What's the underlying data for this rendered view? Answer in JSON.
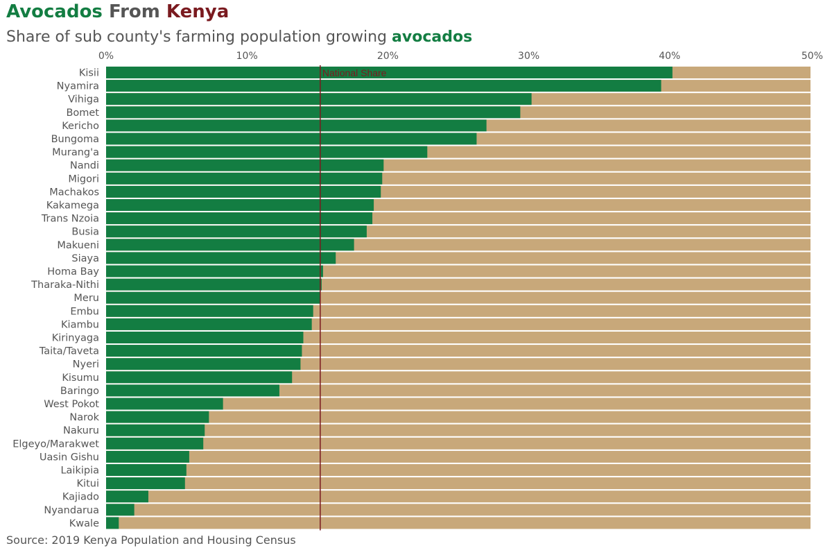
{
  "title": {
    "part1": "Avocados",
    "part2": "From",
    "part3": "Kenya"
  },
  "subtitle": {
    "prefix": "Share of sub county's farming population growing ",
    "highlight": "avocados"
  },
  "caption": "Source: 2019 Kenya Population and Housing Census",
  "colors": {
    "green": "#137d42",
    "tan": "#c8a87a",
    "maroon": "#7a1a1f",
    "gray": "#555555"
  },
  "chart_data": {
    "type": "bar",
    "orientation": "horizontal",
    "stacked": true,
    "title": "Avocados From Kenya",
    "subtitle": "Share of sub county's farming population growing avocados",
    "x_ticks": [
      "0%",
      "10%",
      "20%",
      "30%",
      "40%",
      "50%"
    ],
    "xlim": [
      0,
      50
    ],
    "axis_position": "top",
    "grid": false,
    "reference_line": {
      "value": 15.2,
      "label": "National Share"
    },
    "categories": [
      "Kisii",
      "Nyamira",
      "Vihiga",
      "Bomet",
      "Kericho",
      "Bungoma",
      "Murang'a",
      "Nandi",
      "Migori",
      "Machakos",
      "Kakamega",
      "Trans Nzoia",
      "Busia",
      "Makueni",
      "Siaya",
      "Homa Bay",
      "Tharaka-Nithi",
      "Meru",
      "Embu",
      "Kiambu",
      "Kirinyaga",
      "Taita/Taveta",
      "Nyeri",
      "Kisumu",
      "Baringo",
      "West Pokot",
      "Narok",
      "Nakuru",
      "Elgeyo/Marakwet",
      "Uasin Gishu",
      "Laikipia",
      "Kitui",
      "Kajiado",
      "Nyandarua",
      "Kwale"
    ],
    "values": [
      40.2,
      39.4,
      30.2,
      29.4,
      27.0,
      26.3,
      22.8,
      19.7,
      19.6,
      19.5,
      19.0,
      18.9,
      18.5,
      17.6,
      16.3,
      15.4,
      15.3,
      15.2,
      14.7,
      14.6,
      14.0,
      13.9,
      13.8,
      13.2,
      12.3,
      8.3,
      7.3,
      7.0,
      6.9,
      5.9,
      5.7,
      5.6,
      3.0,
      2.0,
      0.9
    ],
    "series": [
      {
        "name": "avocados",
        "color": "#137d42"
      }
    ]
  }
}
